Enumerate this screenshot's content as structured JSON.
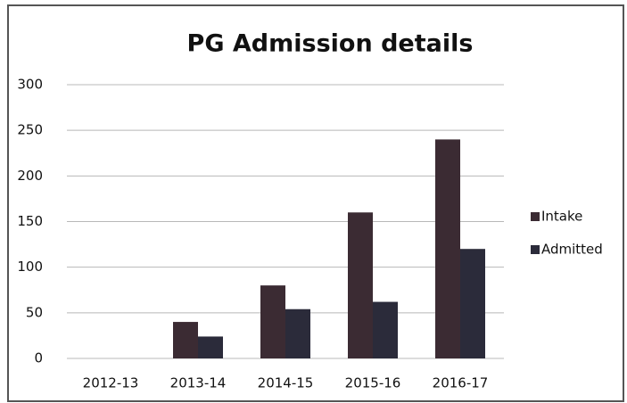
{
  "chart_data": {
    "type": "bar",
    "title": "PG Admission details",
    "categories": [
      "2012-13",
      "2013-14",
      "2014-15",
      "2015-16",
      "2016-17"
    ],
    "series": [
      {
        "name": "Intake",
        "color": "#3b2b33",
        "values": [
          0,
          40,
          80,
          160,
          240
        ]
      },
      {
        "name": "Admitted",
        "color": "#2b2b3a",
        "values": [
          0,
          24,
          54,
          62,
          120
        ]
      }
    ],
    "ylim": [
      0,
      300
    ],
    "yticks": [
      0,
      50,
      100,
      150,
      200,
      250,
      300
    ],
    "grid": true,
    "legend": "right"
  }
}
